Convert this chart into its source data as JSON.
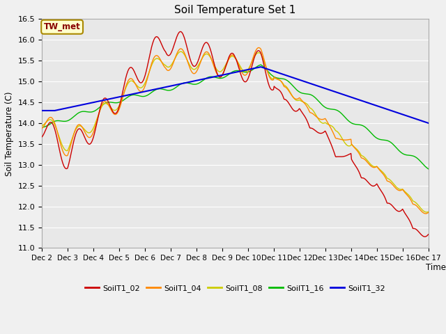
{
  "title": "Soil Temperature Set 1",
  "xlabel": "Time",
  "ylabel": "Soil Temperature (C)",
  "ylim": [
    11.0,
    16.5
  ],
  "yticks": [
    11.0,
    11.5,
    12.0,
    12.5,
    13.0,
    13.5,
    14.0,
    14.5,
    15.0,
    15.5,
    16.0,
    16.5
  ],
  "xtick_labels": [
    "Dec 2",
    "Dec 3",
    "Dec 4",
    "Dec 5",
    "Dec 6",
    "Dec 7",
    "Dec 8",
    "Dec 9",
    "Dec 10",
    "Dec 11",
    "Dec 12",
    "Dec 13",
    "Dec 14",
    "Dec 15",
    "Dec 16",
    "Dec 17"
  ],
  "series_colors": {
    "SoilT1_02": "#cc0000",
    "SoilT1_04": "#ff8800",
    "SoilT1_08": "#cccc00",
    "SoilT1_16": "#00bb00",
    "SoilT1_32": "#0000dd"
  },
  "legend_labels": [
    "SoilT1_02",
    "SoilT1_04",
    "SoilT1_08",
    "SoilT1_16",
    "SoilT1_32"
  ],
  "annotation_text": "TW_met",
  "annotation_color": "#880000",
  "annotation_bg": "#ffffcc",
  "annotation_border": "#aa8800",
  "background_color": "#e8e8e8",
  "grid_color": "#ffffff"
}
